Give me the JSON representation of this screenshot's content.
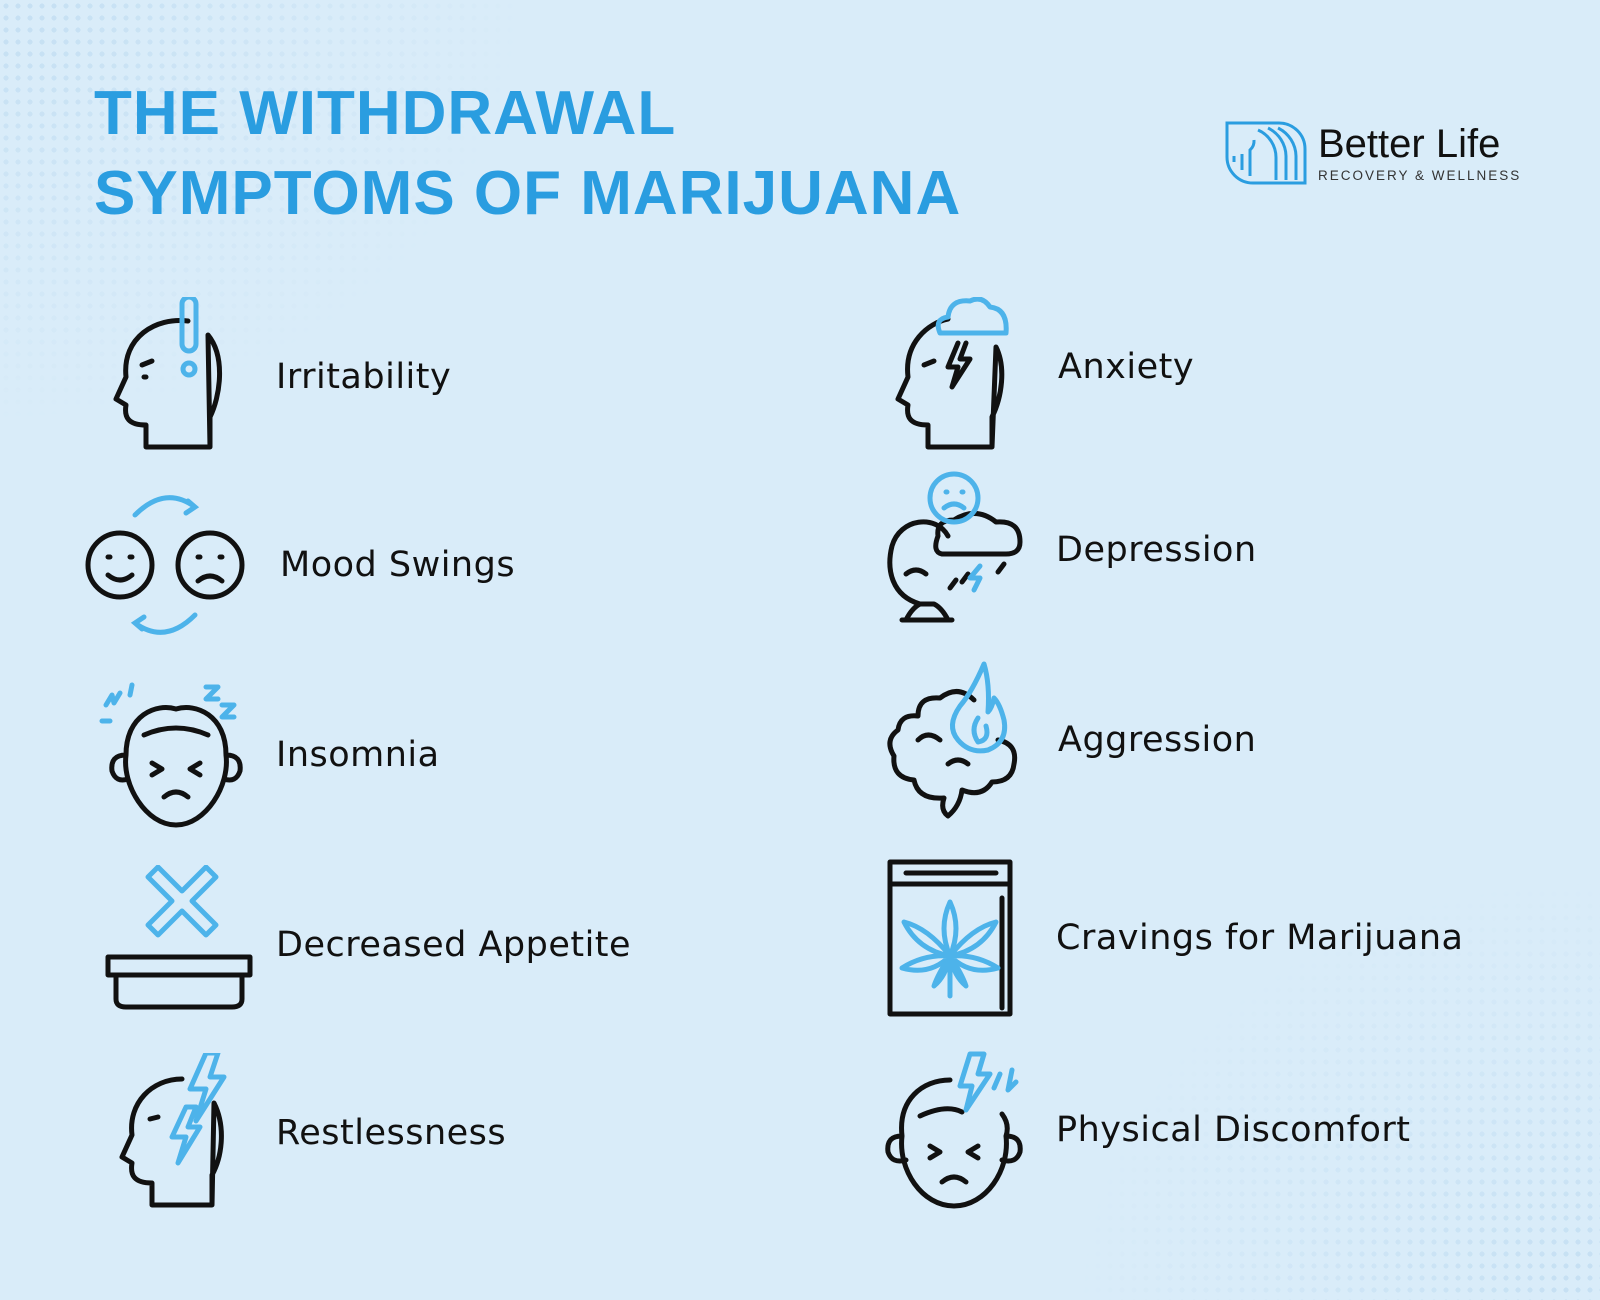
{
  "title": {
    "line1": "THE WITHDRAWAL",
    "line2": "SYMPTOMS OF MARIJUANA"
  },
  "logo": {
    "name": "Better Life",
    "tagline": "RECOVERY & WELLNESS"
  },
  "colors": {
    "accent": "#2a9de0",
    "icon_accent": "#4db3ea",
    "background": "#d9ecf9",
    "ink": "#111111"
  },
  "symptoms": [
    {
      "label": "Irritability",
      "icon": "head-exclamation-icon"
    },
    {
      "label": "Anxiety",
      "icon": "head-storm-cloud-icon"
    },
    {
      "label": "Mood Swings",
      "icon": "mood-swing-faces-icon"
    },
    {
      "label": "Depression",
      "icon": "sad-face-rain-cloud-icon"
    },
    {
      "label": "Insomnia",
      "icon": "sleepless-face-icon"
    },
    {
      "label": "Aggression",
      "icon": "brain-fire-icon"
    },
    {
      "label": "Decreased Appetite",
      "icon": "empty-bowl-x-icon"
    },
    {
      "label": "Cravings for Marijuana",
      "icon": "cannabis-bag-icon"
    },
    {
      "label": "Restlessness",
      "icon": "head-lightning-icon"
    },
    {
      "label": "Physical Discomfort",
      "icon": "pained-face-lightning-icon"
    }
  ]
}
